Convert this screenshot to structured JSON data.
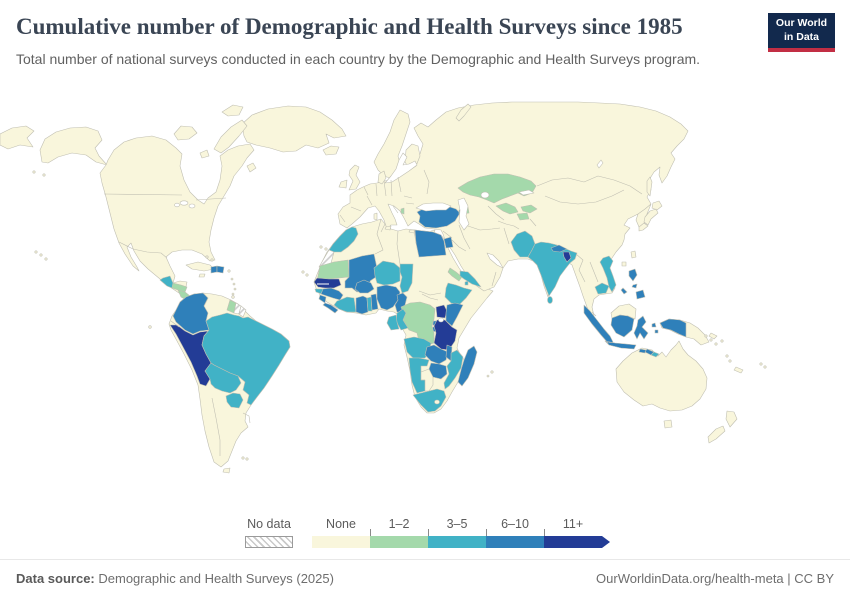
{
  "header": {
    "title": "Cumulative number of Demographic and Health Surveys since 1985",
    "subtitle": "Total number of national surveys conducted in each country by the Demographic and Health Surveys program."
  },
  "logo": {
    "line1": "Our World",
    "line2": "in Data"
  },
  "legend": {
    "no_data_label": "No data",
    "bins": [
      {
        "label": "None",
        "color": "#f9f6dc"
      },
      {
        "label": "1–2",
        "color": "#a4d9ab"
      },
      {
        "label": "3–5",
        "color": "#41b2c6"
      },
      {
        "label": "6–10",
        "color": "#2f80ba"
      },
      {
        "label": "11+",
        "color": "#233c96"
      }
    ]
  },
  "footer": {
    "source_label": "Data source:",
    "source": "Demographic and Health Surveys (2025)",
    "link": "OurWorldinData.org/health-meta",
    "license": " | CC BY"
  },
  "chart_data": {
    "type": "choropleth_map",
    "title": "Cumulative number of Demographic and Health Surveys since 1985",
    "unit": "surveys",
    "bins": [
      "None",
      "1–2",
      "3–5",
      "6–10",
      "11+",
      "No data"
    ],
    "all_other_countries": "None",
    "countries": {
      "senegal": "11+",
      "peru": "11+",
      "uganda": "11+",
      "tanzania": "11+",
      "bangladesh": "11+",
      "colombia": "6–10",
      "haiti": "6–10",
      "dominican_republic": "6–10",
      "turkey": "6–10",
      "jordan": "6–10",
      "egypt": "6–10",
      "mali": "6–10",
      "burkina_faso": "6–10",
      "guinea": "6–10",
      "sierra_leone": "6–10",
      "liberia": "6–10",
      "ghana": "6–10",
      "benin": "6–10",
      "nigeria": "6–10",
      "cameroon": "6–10",
      "kenya": "6–10",
      "rwanda": "6–10",
      "burundi": "6–10",
      "zambia": "6–10",
      "malawi": "6–10",
      "zimbabwe": "6–10",
      "madagascar": "6–10",
      "nepal": "6–10",
      "philippines": "6–10",
      "indonesia": "6–10",
      "guatemala": "3–5",
      "brazil": "3–5",
      "bolivia": "3–5",
      "paraguay": "3–5",
      "morocco": "3–5",
      "cote_divoire": "3–5",
      "togo": "3–5",
      "guinea_bissau": "3–5",
      "niger": "3–5",
      "chad": "3–5",
      "ethiopia": "3–5",
      "djibouti": "3–5",
      "mozambique": "3–5",
      "namibia": "3–5",
      "south_africa": "3–5",
      "angola": "3–5",
      "gabon": "3–5",
      "congo": "3–5",
      "armenia": "3–5",
      "yemen": "3–5",
      "pakistan": "3–5",
      "india": "3–5",
      "sri_lanka": "3–5",
      "cambodia": "3–5",
      "vietnam": "3–5",
      "timor_leste": "3–5",
      "honduras": "1–2",
      "nicaragua": "1–2",
      "guyana": "1–2",
      "mauritania": "1–2",
      "eritrea": "1–2",
      "dr_congo": "1–2",
      "kazakhstan": "1–2",
      "uzbekistan": "1–2",
      "kyrgyzstan": "1–2",
      "tajikistan": "1–2",
      "albania": "1–2",
      "azerbaijan": "1–2",
      "suriname": "No data",
      "french_guiana": "No data",
      "western_sahara": "No data"
    }
  }
}
